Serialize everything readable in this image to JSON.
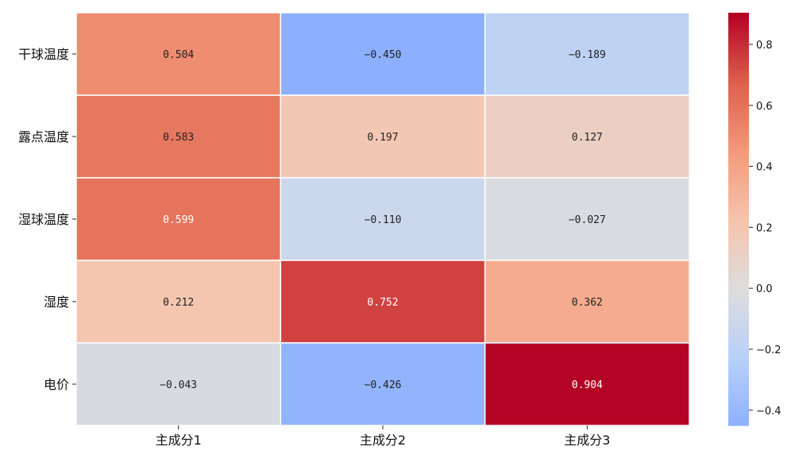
{
  "chart_data": {
    "type": "heatmap",
    "rows": [
      "干球温度",
      "露点温度",
      "湿球温度",
      "湿度",
      "电价"
    ],
    "columns": [
      "主成分1",
      "主成分2",
      "主成分3"
    ],
    "values": [
      [
        0.504,
        -0.45,
        -0.189
      ],
      [
        0.583,
        0.197,
        0.127
      ],
      [
        0.599,
        -0.11,
        -0.027
      ],
      [
        0.212,
        0.752,
        0.362
      ],
      [
        -0.043,
        -0.426,
        0.904
      ]
    ],
    "value_labels": [
      [
        "0.504",
        "−0.450",
        "−0.189"
      ],
      [
        "0.583",
        "0.197",
        "0.127"
      ],
      [
        "0.599",
        "−0.110",
        "−0.027"
      ],
      [
        "0.212",
        "0.752",
        "0.362"
      ],
      [
        "−0.043",
        "−0.426",
        "0.904"
      ]
    ],
    "colormap": "coolwarm",
    "vmin": -0.45,
    "vmax": 0.904,
    "colorbar_ticks": [
      0.8,
      0.6,
      0.4,
      0.2,
      0.0,
      -0.2,
      -0.4
    ],
    "colorbar_tick_labels": [
      "0.8",
      "0.6",
      "0.4",
      "0.2",
      "0.0",
      "−0.2",
      "−0.4"
    ],
    "title": "",
    "xlabel": "",
    "ylabel": ""
  }
}
